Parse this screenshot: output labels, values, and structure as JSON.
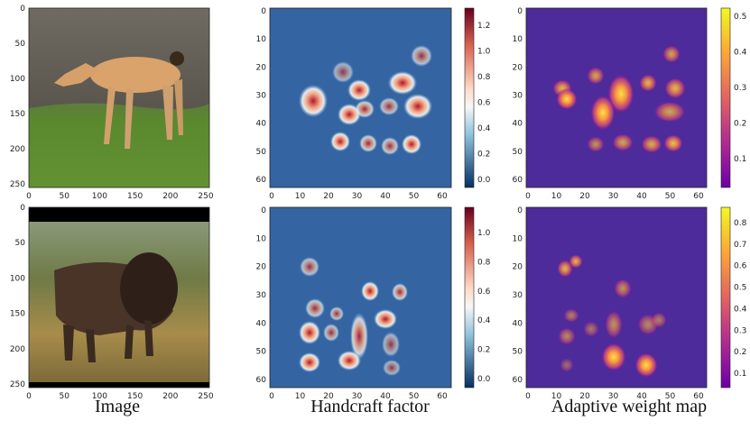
{
  "captions": [
    "Image",
    "Handcraft factor",
    "Adaptive weight map"
  ],
  "colorbars": {
    "row1_handcraft": [
      "1.2",
      "1.0",
      "0.8",
      "0.6",
      "0.4",
      "0.2",
      "0.0"
    ],
    "row1_adaptive": [
      "0.5",
      "0.4",
      "0.3",
      "0.2",
      "0.1"
    ],
    "row2_handcraft": [
      "1.0",
      "0.8",
      "0.6",
      "0.4",
      "0.2",
      "0.0"
    ],
    "row2_adaptive": [
      "0.8",
      "0.7",
      "0.6",
      "0.5",
      "0.4",
      "0.3",
      "0.2",
      "0.1"
    ]
  },
  "axes": {
    "image_y": [
      "0",
      "50",
      "100",
      "150",
      "200",
      "250"
    ],
    "image_x": [
      "0",
      "50",
      "100",
      "150",
      "200",
      "250"
    ],
    "map_y": [
      "0",
      "10",
      "20",
      "30",
      "40",
      "50",
      "60"
    ],
    "map_x": [
      "0",
      "10",
      "20",
      "30",
      "40",
      "50",
      "60"
    ]
  },
  "colors": {
    "handcraft_bg": "#3465a4",
    "handcraft_hot": "#b2182b",
    "adaptive_bg": "#4a2b97",
    "adaptive_hot": "#fde047"
  }
}
